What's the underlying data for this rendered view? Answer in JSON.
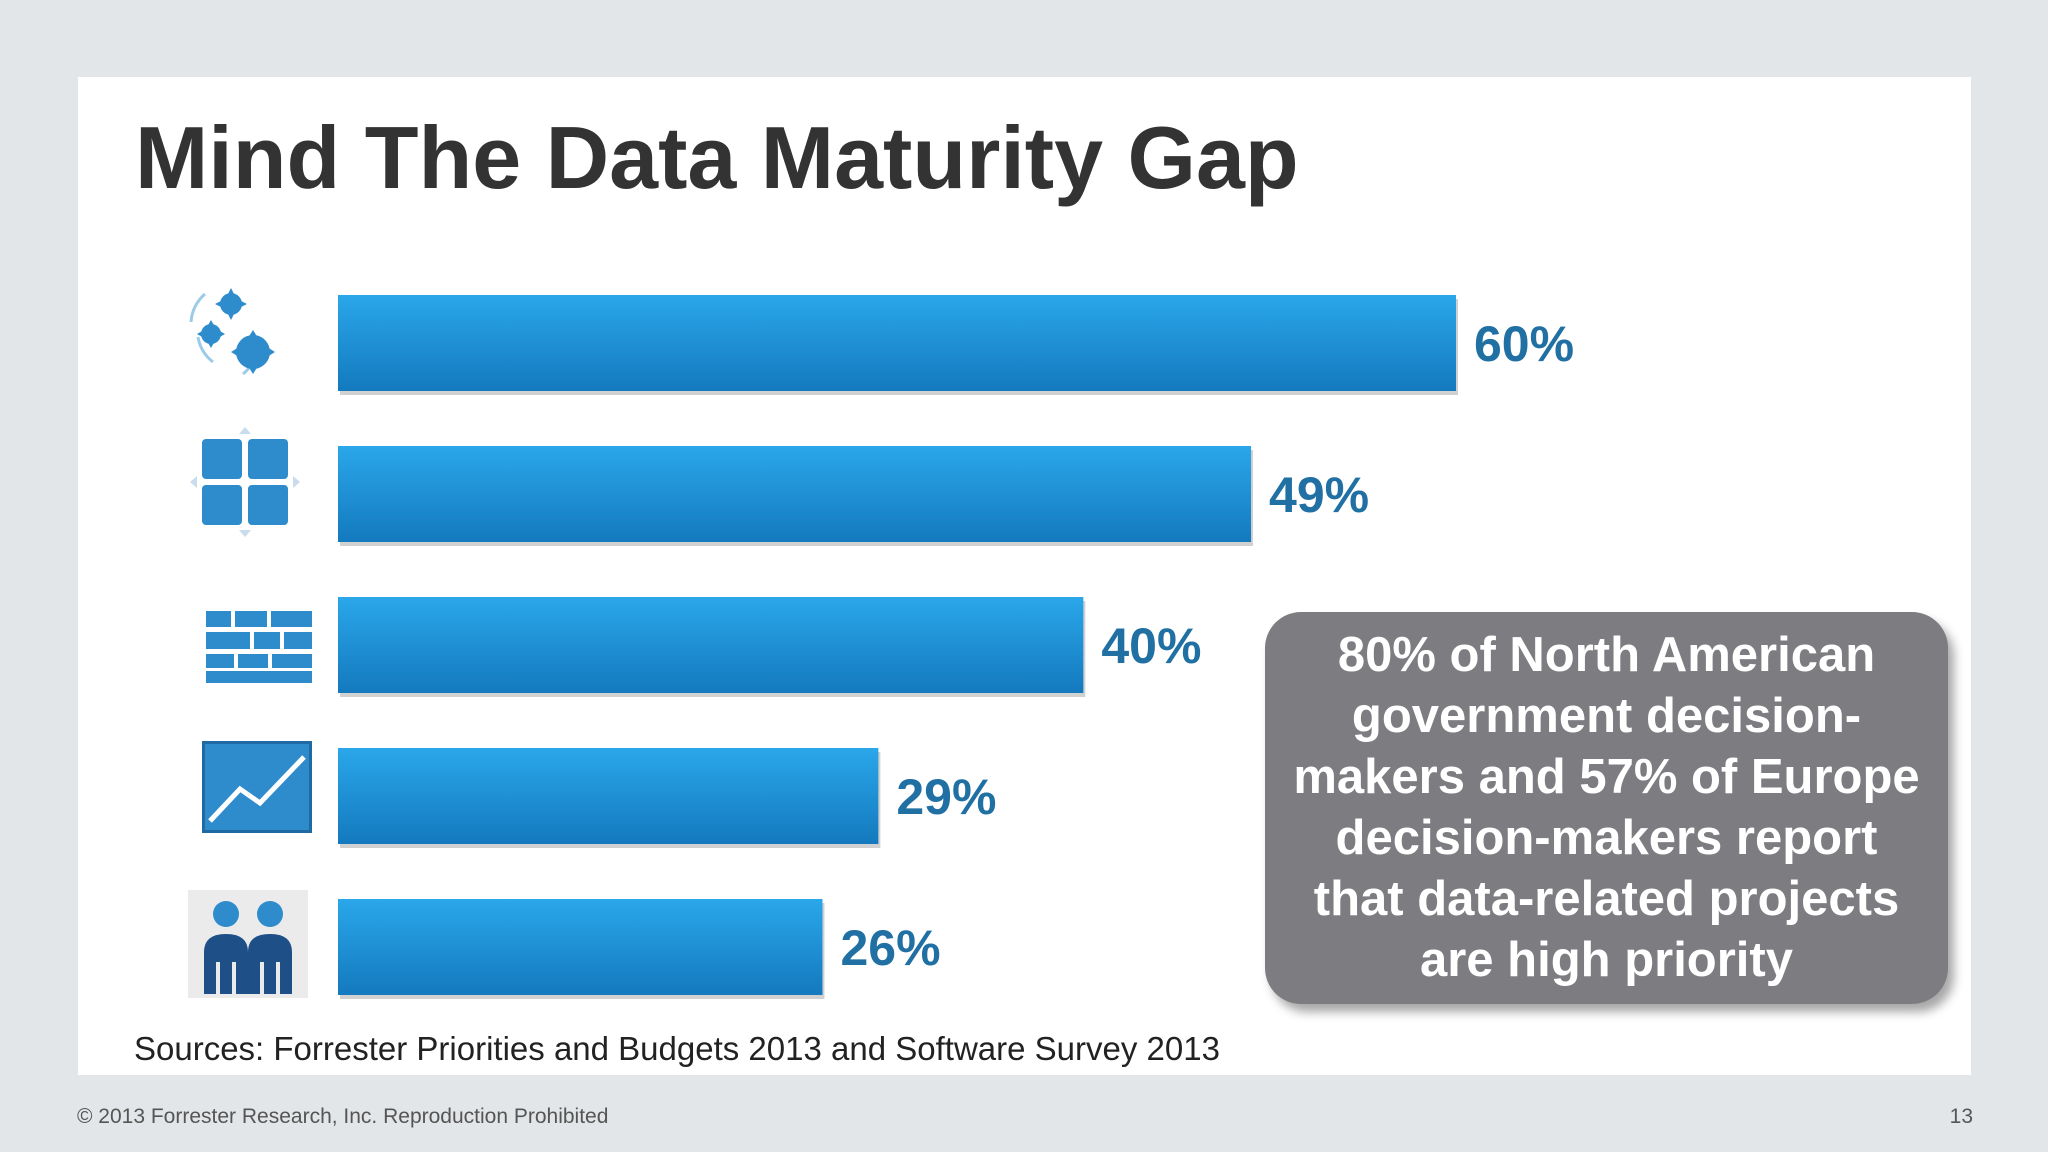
{
  "slide": {
    "title": "Mind The Data Maturity Gap",
    "sources": "Sources: Forrester Priorities and Budgets 2013 and Software Survey 2013",
    "footer_copyright": "© 2013 Forrester Research, Inc. Reproduction Prohibited",
    "page_number": "13"
  },
  "callout": {
    "text": "80% of North American government decision-makers and 57% of Europe decision-makers report that data-related projects are high priority"
  },
  "colors": {
    "bar_top": "#2aa7ea",
    "bar_bottom": "#1479be",
    "label": "#2170a4",
    "icon": "#2e8ccc",
    "callout": "#7d7c80"
  },
  "chart_data": {
    "type": "bar",
    "orientation": "horizontal",
    "categories": [
      "gears-icon",
      "modules-icon",
      "bricks-icon",
      "trend-chart-icon",
      "people-icon"
    ],
    "values": [
      60,
      49,
      40,
      29,
      26
    ],
    "value_labels": [
      "60%",
      "49%",
      "40%",
      "29%",
      "26%"
    ],
    "xlim": [
      0,
      60
    ],
    "grid": false,
    "legend": "none"
  }
}
